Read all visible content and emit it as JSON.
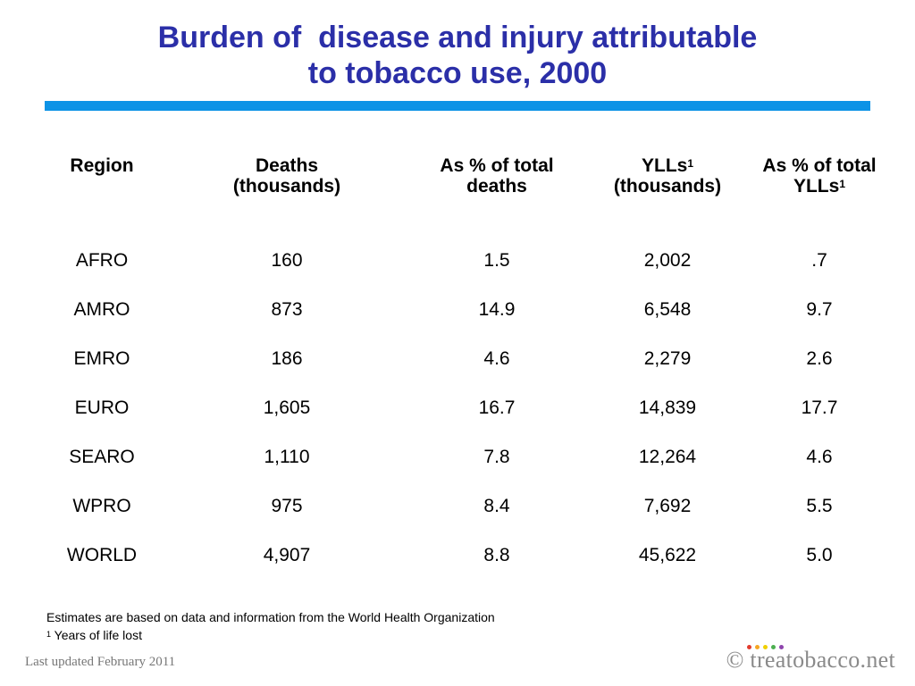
{
  "title": {
    "line1": "Burden of  disease and injury attributable",
    "line2": "to tobacco use, 2000"
  },
  "table": {
    "headers": [
      {
        "line1": "Region",
        "line2": "",
        "sup": ""
      },
      {
        "line1": "Deaths",
        "line2": "(thousands)",
        "sup": ""
      },
      {
        "line1": "As % of total",
        "line2": "deaths",
        "sup": ""
      },
      {
        "line1": "YLLs",
        "line2": "(thousands)",
        "sup": "1"
      },
      {
        "line1": "As % of total",
        "line2": "YLLs",
        "sup": "1"
      }
    ],
    "rows": [
      [
        "AFRO",
        "160",
        "1.5",
        "2,002",
        ".7"
      ],
      [
        "AMRO",
        "873",
        "14.9",
        "6,548",
        "9.7"
      ],
      [
        "EMRO",
        "186",
        "4.6",
        "2,279",
        "2.6"
      ],
      [
        "EURO",
        "1,605",
        "16.7",
        "14,839",
        "17.7"
      ],
      [
        "SEARO",
        "1,110",
        "7.8",
        "12,264",
        "4.6"
      ],
      [
        "WPRO",
        "975",
        "8.4",
        "7,692",
        "5.5"
      ],
      [
        "WORLD",
        "4,907",
        "8.8",
        "45,622",
        "5.0"
      ]
    ]
  },
  "footnotes": {
    "source": "Estimates are based on data and information from  the World Health Organization",
    "ylls_marker": "1",
    "ylls_note": " Years of life lost"
  },
  "footer": {
    "updated": "Last updated February 2011",
    "brand": "© treatobacco.net"
  },
  "colors": {
    "title": "#2b2fa8",
    "rule": "#0d93e6",
    "dots": [
      "#e23b2e",
      "#f5a623",
      "#f0d000",
      "#4caf50",
      "#8e44ad"
    ]
  }
}
